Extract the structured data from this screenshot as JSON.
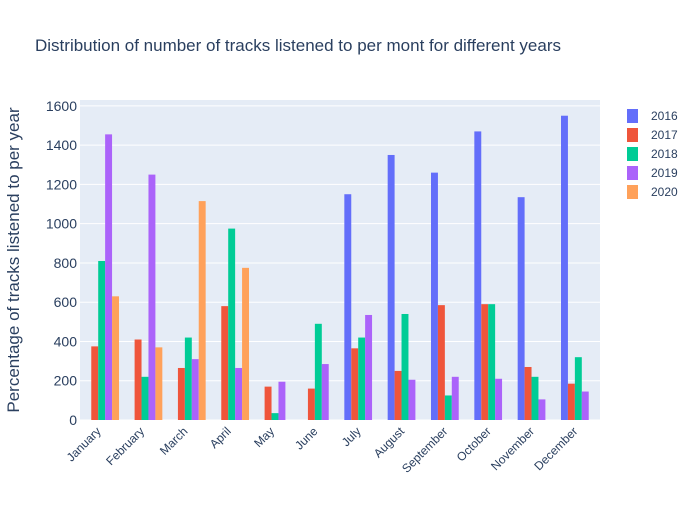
{
  "chart_data": {
    "type": "bar",
    "title": "Distribution of number of tracks listened to per mont for different years",
    "xlabel": "",
    "ylabel": "Percentage of tracks listened to per year",
    "ylim": [
      0,
      1630
    ],
    "yticks": [
      0,
      200,
      400,
      600,
      800,
      1000,
      1200,
      1400,
      1600
    ],
    "grid": true,
    "legend_position": "top-right",
    "categories": [
      "January",
      "February",
      "March",
      "April",
      "May",
      "June",
      "July",
      "August",
      "September",
      "October",
      "November",
      "December"
    ],
    "series": [
      {
        "name": "2016",
        "color": "#636efa",
        "values": [
          0,
          0,
          0,
          0,
          0,
          0,
          1150,
          1350,
          1260,
          1470,
          1135,
          1550
        ]
      },
      {
        "name": "2017",
        "color": "#ef553b",
        "values": [
          375,
          410,
          265,
          580,
          170,
          160,
          365,
          250,
          585,
          590,
          270,
          185
        ]
      },
      {
        "name": "2018",
        "color": "#00cc96",
        "values": [
          810,
          220,
          420,
          975,
          35,
          490,
          420,
          540,
          125,
          590,
          220,
          320
        ]
      },
      {
        "name": "2019",
        "color": "#ab63fa",
        "values": [
          1455,
          1250,
          310,
          265,
          195,
          285,
          535,
          205,
          220,
          210,
          105,
          145
        ]
      },
      {
        "name": "2020",
        "color": "#ffa15a",
        "values": [
          630,
          370,
          1115,
          775,
          0,
          0,
          0,
          0,
          0,
          0,
          0,
          0
        ]
      }
    ]
  }
}
